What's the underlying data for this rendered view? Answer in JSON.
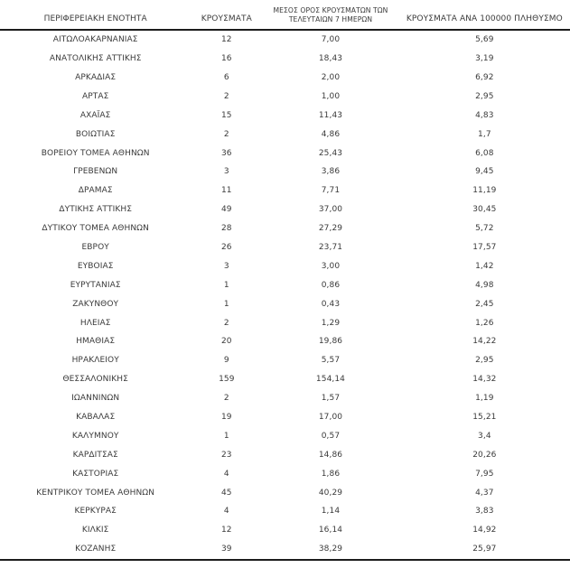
{
  "colors": {
    "background": "#ffffff",
    "text": "#3a3a3a",
    "rule": "#1c1c1c"
  },
  "table": {
    "columns": [
      {
        "id": "region",
        "label": "ΠΕΡΙΦΕΡΕΙΑΚΗ ΕΝΟΤΗΤΑ"
      },
      {
        "id": "cases",
        "label": "ΚΡΟΥΣΜΑΤΑ"
      },
      {
        "id": "avg7",
        "label": "ΜΕΣΟΣ ΟΡΟΣ ΚΡΟΥΣΜΑΤΩΝ ΤΩΝ\nΤΕΛΕΥΤΑΙΩΝ 7 ΗΜΕΡΩΝ"
      },
      {
        "id": "per100k",
        "label": "ΚΡΟΥΣΜΑΤΑ ΑΝΑ 100000 ΠΛΗΘΥΣΜΟ"
      }
    ],
    "rows": [
      {
        "region": "ΑΙΤΩΛΟΑΚΑΡΝΑΝΙΑΣ",
        "cases": "12",
        "avg_7day": "7,00",
        "per_100k": "5,69"
      },
      {
        "region": "ΑΝΑΤΟΛΙΚΗΣ ΑΤΤΙΚΗΣ",
        "cases": "16",
        "avg_7day": "18,43",
        "per_100k": "3,19"
      },
      {
        "region": "ΑΡΚΑΔΙΑΣ",
        "cases": "6",
        "avg_7day": "2,00",
        "per_100k": "6,92"
      },
      {
        "region": "ΑΡΤΑΣ",
        "cases": "2",
        "avg_7day": "1,00",
        "per_100k": "2,95"
      },
      {
        "region": "ΑΧΑΪΑΣ",
        "cases": "15",
        "avg_7day": "11,43",
        "per_100k": "4,83"
      },
      {
        "region": "ΒΟΙΩΤΙΑΣ",
        "cases": "2",
        "avg_7day": "4,86",
        "per_100k": "1,7"
      },
      {
        "region": "ΒΟΡΕΙΟΥ ΤΟΜΕΑ ΑΘΗΝΩΝ",
        "cases": "36",
        "avg_7day": "25,43",
        "per_100k": "6,08"
      },
      {
        "region": "ΓΡΕΒΕΝΩΝ",
        "cases": "3",
        "avg_7day": "3,86",
        "per_100k": "9,45"
      },
      {
        "region": "ΔΡΑΜΑΣ",
        "cases": "11",
        "avg_7day": "7,71",
        "per_100k": "11,19"
      },
      {
        "region": "ΔΥΤΙΚΗΣ ΑΤΤΙΚΗΣ",
        "cases": "49",
        "avg_7day": "37,00",
        "per_100k": "30,45"
      },
      {
        "region": "ΔΥΤΙΚΟΥ ΤΟΜΕΑ ΑΘΗΝΩΝ",
        "cases": "28",
        "avg_7day": "27,29",
        "per_100k": "5,72"
      },
      {
        "region": "ΕΒΡΟΥ",
        "cases": "26",
        "avg_7day": "23,71",
        "per_100k": "17,57"
      },
      {
        "region": "ΕΥΒΟΙΑΣ",
        "cases": "3",
        "avg_7day": "3,00",
        "per_100k": "1,42"
      },
      {
        "region": "ΕΥΡΥΤΑΝΙΑΣ",
        "cases": "1",
        "avg_7day": "0,86",
        "per_100k": "4,98"
      },
      {
        "region": "ΖΑΚΥΝΘΟΥ",
        "cases": "1",
        "avg_7day": "0,43",
        "per_100k": "2,45"
      },
      {
        "region": "ΗΛΕΙΑΣ",
        "cases": "2",
        "avg_7day": "1,29",
        "per_100k": "1,26"
      },
      {
        "region": "ΗΜΑΘΙΑΣ",
        "cases": "20",
        "avg_7day": "19,86",
        "per_100k": "14,22"
      },
      {
        "region": "ΗΡΑΚΛΕΙΟΥ",
        "cases": "9",
        "avg_7day": "5,57",
        "per_100k": "2,95"
      },
      {
        "region": "ΘΕΣΣΑΛΟΝΙΚΗΣ",
        "cases": "159",
        "avg_7day": "154,14",
        "per_100k": "14,32"
      },
      {
        "region": "ΙΩΑΝΝΙΝΩΝ",
        "cases": "2",
        "avg_7day": "1,57",
        "per_100k": "1,19"
      },
      {
        "region": "ΚΑΒΑΛΑΣ",
        "cases": "19",
        "avg_7day": "17,00",
        "per_100k": "15,21"
      },
      {
        "region": "ΚΑΛΥΜΝΟΥ",
        "cases": "1",
        "avg_7day": "0,57",
        "per_100k": "3,4"
      },
      {
        "region": "ΚΑΡΔΙΤΣΑΣ",
        "cases": "23",
        "avg_7day": "14,86",
        "per_100k": "20,26"
      },
      {
        "region": "ΚΑΣΤΟΡΙΑΣ",
        "cases": "4",
        "avg_7day": "1,86",
        "per_100k": "7,95"
      },
      {
        "region": "ΚΕΝΤΡΙΚΟΥ ΤΟΜΕΑ ΑΘΗΝΩΝ",
        "cases": "45",
        "avg_7day": "40,29",
        "per_100k": "4,37"
      },
      {
        "region": "ΚΕΡΚΥΡΑΣ",
        "cases": "4",
        "avg_7day": "1,14",
        "per_100k": "3,83"
      },
      {
        "region": "ΚΙΛΚΙΣ",
        "cases": "12",
        "avg_7day": "16,14",
        "per_100k": "14,92"
      },
      {
        "region": "ΚΟΖΑΝΗΣ",
        "cases": "39",
        "avg_7day": "38,29",
        "per_100k": "25,97"
      }
    ]
  }
}
